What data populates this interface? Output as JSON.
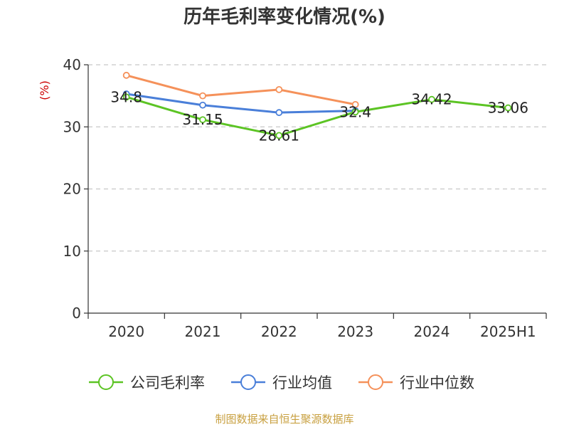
{
  "source_note": "制图数据来自恒生聚源数据库",
  "chart_data": {
    "type": "line",
    "title": "历年毛利率变化情况(%)",
    "ylabel": "(%)",
    "categories": [
      "2020",
      "2021",
      "2022",
      "2023",
      "2024",
      "2025H1"
    ],
    "ylim": [
      0,
      40
    ],
    "yticks": [
      0,
      10,
      20,
      30,
      40
    ],
    "grid": true,
    "legend_position": "bottom",
    "series": [
      {
        "name": "公司毛利率",
        "color": "#5cc424",
        "values": [
          34.8,
          31.15,
          28.61,
          32.4,
          34.42,
          33.06
        ],
        "labels": [
          "34.8",
          "31.15",
          "28.61",
          "32.4",
          "34.42",
          "33.06"
        ]
      },
      {
        "name": "行业均值",
        "color": "#4a7fd9",
        "values": [
          35.3,
          33.5,
          32.3,
          32.6,
          null,
          null
        ]
      },
      {
        "name": "行业中位数",
        "color": "#f5915a",
        "values": [
          38.3,
          35.0,
          36.0,
          33.6,
          null,
          null
        ]
      }
    ]
  }
}
